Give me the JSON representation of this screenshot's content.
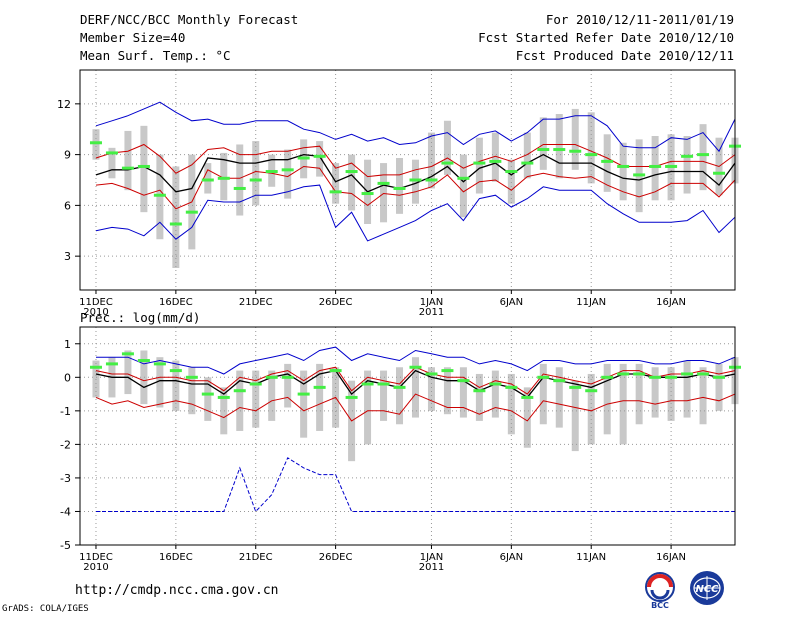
{
  "header": {
    "title": "DERF/NCC/BCC Monthly Forecast",
    "member_size": "Member Size=40",
    "variable": "Mean Surf. Temp.: °C",
    "forecast_range": "For 2010/12/11-2011/01/19",
    "start_date": "Fcst Started Refer Date 2010/12/10",
    "produced_date": "Fcst Produced Date 2010/12/11"
  },
  "footer": {
    "url": "http://cmdp.ncc.cma.gov.cn",
    "credit": "GrADS: COLA/IGES",
    "logo_bcc": "BCC",
    "logo_ncc": "NCC"
  },
  "colors": {
    "mean": "#000000",
    "inner": "#cc0000",
    "outer": "#0000cc",
    "box": "#c8c8c8",
    "obs": "#44ee44"
  },
  "chart_data": [
    {
      "type": "line",
      "title": "Mean Surf. Temp.: °C",
      "x_labels": [
        {
          "day": 1,
          "text": "11DEC",
          "sub": "2010"
        },
        {
          "day": 6,
          "text": "16DEC",
          "sub": ""
        },
        {
          "day": 11,
          "text": "21DEC",
          "sub": ""
        },
        {
          "day": 16,
          "text": "26DEC",
          "sub": ""
        },
        {
          "day": 22,
          "text": "1JAN",
          "sub": "2011"
        },
        {
          "day": 27,
          "text": "6JAN",
          "sub": ""
        },
        {
          "day": 32,
          "text": "11JAN",
          "sub": ""
        },
        {
          "day": 37,
          "text": "16JAN",
          "sub": ""
        }
      ],
      "yticks": [
        "3",
        "6",
        "9",
        "12"
      ],
      "ylim": [
        1,
        14
      ],
      "xlim": [
        0,
        41
      ],
      "series": [
        {
          "name": "ensemble mean",
          "values": [
            7.8,
            8.1,
            8.1,
            8.3,
            7.8,
            6.8,
            7.0,
            8.8,
            8.7,
            8.5,
            8.5,
            8.7,
            8.7,
            9.0,
            8.9,
            7.4,
            7.8,
            6.8,
            7.2,
            7.0,
            7.3,
            7.7,
            8.3,
            7.4,
            8.2,
            8.5,
            7.8,
            8.5,
            9.0,
            8.5,
            8.5,
            8.5,
            8.0,
            7.6,
            7.5,
            7.8,
            8.0,
            8.0,
            8.0,
            7.2,
            8.5
          ]
        },
        {
          "name": "upper band",
          "values": [
            8.8,
            9.1,
            9.2,
            9.6,
            8.9,
            7.9,
            8.4,
            9.3,
            9.4,
            9.0,
            9.0,
            9.2,
            9.2,
            9.4,
            9.5,
            8.2,
            8.5,
            7.7,
            7.8,
            7.8,
            8.1,
            8.3,
            8.8,
            8.2,
            8.6,
            8.9,
            8.6,
            9.0,
            9.6,
            9.6,
            9.6,
            9.2,
            8.8,
            8.3,
            8.3,
            8.3,
            8.6,
            8.6,
            8.6,
            8.3,
            9.0
          ]
        },
        {
          "name": "lower band",
          "values": [
            7.2,
            7.3,
            7.0,
            6.6,
            6.9,
            5.8,
            6.2,
            8.1,
            7.6,
            7.6,
            8.0,
            7.9,
            7.7,
            8.3,
            8.2,
            6.8,
            6.7,
            6.0,
            6.7,
            6.6,
            6.8,
            7.1,
            7.8,
            6.8,
            7.4,
            7.5,
            6.9,
            7.7,
            7.9,
            7.7,
            7.6,
            7.7,
            7.2,
            6.8,
            6.5,
            6.8,
            7.3,
            7.3,
            7.3,
            6.5,
            7.5
          ]
        },
        {
          "name": "max",
          "values": [
            10.7,
            11.0,
            11.3,
            11.7,
            12.1,
            11.5,
            11.0,
            11.1,
            10.8,
            10.8,
            11.0,
            11.0,
            11.0,
            10.5,
            10.3,
            9.9,
            10.2,
            9.8,
            10.0,
            9.6,
            9.7,
            10.1,
            10.3,
            9.6,
            10.2,
            10.4,
            9.8,
            10.3,
            11.1,
            11.1,
            11.3,
            11.3,
            10.7,
            9.5,
            9.4,
            9.4,
            10.0,
            9.9,
            10.3,
            9.2,
            11.1
          ]
        },
        {
          "name": "min",
          "values": [
            4.5,
            4.7,
            4.6,
            4.2,
            5.0,
            4.0,
            4.7,
            6.3,
            6.2,
            6.2,
            6.6,
            6.6,
            6.8,
            7.1,
            7.2,
            4.7,
            5.6,
            3.9,
            4.3,
            4.7,
            5.1,
            5.7,
            6.1,
            5.1,
            6.4,
            6.6,
            5.9,
            6.4,
            7.1,
            6.9,
            6.9,
            6.9,
            6.1,
            5.5,
            5.0,
            5.0,
            5.0,
            5.1,
            5.7,
            4.4,
            5.3
          ]
        }
      ],
      "boxes": [
        {
          "low": 8.7,
          "high": 10.5
        },
        {
          "low": 7.6,
          "high": 9.4
        },
        {
          "low": 6.9,
          "high": 10.4
        },
        {
          "low": 5.6,
          "high": 10.7
        },
        {
          "low": 4.0,
          "high": 9.0
        },
        {
          "low": 2.3,
          "high": 8.3
        },
        {
          "low": 3.4,
          "high": 9.0
        },
        {
          "low": 6.7,
          "high": 8.5
        },
        {
          "low": 6.3,
          "high": 9.1
        },
        {
          "low": 5.4,
          "high": 9.6
        },
        {
          "low": 6.0,
          "high": 9.8
        },
        {
          "low": 7.1,
          "high": 9.0
        },
        {
          "low": 6.4,
          "high": 9.3
        },
        {
          "low": 7.6,
          "high": 9.9
        },
        {
          "low": 7.7,
          "high": 9.8
        },
        {
          "low": 6.1,
          "high": 8.5
        },
        {
          "low": 5.7,
          "high": 9.0
        },
        {
          "low": 4.9,
          "high": 8.7
        },
        {
          "low": 5.0,
          "high": 8.5
        },
        {
          "low": 5.5,
          "high": 8.8
        },
        {
          "low": 6.1,
          "high": 8.7
        },
        {
          "low": 7.0,
          "high": 10.3
        },
        {
          "low": 7.8,
          "high": 11.0
        },
        {
          "low": 5.3,
          "high": 9.0
        },
        {
          "low": 6.7,
          "high": 10.0
        },
        {
          "low": 7.4,
          "high": 10.3
        },
        {
          "low": 6.1,
          "high": 8.7
        },
        {
          "low": 7.6,
          "high": 10.3
        },
        {
          "low": 8.1,
          "high": 11.2
        },
        {
          "low": 7.6,
          "high": 11.4
        },
        {
          "low": 8.1,
          "high": 11.7
        },
        {
          "low": 7.3,
          "high": 11.5
        },
        {
          "low": 6.8,
          "high": 10.2
        },
        {
          "low": 6.3,
          "high": 9.7
        },
        {
          "low": 5.6,
          "high": 9.9
        },
        {
          "low": 6.3,
          "high": 10.1
        },
        {
          "low": 6.3,
          "high": 10.2
        },
        {
          "low": 6.7,
          "high": 10.1
        },
        {
          "low": 6.9,
          "high": 10.8
        },
        {
          "low": 6.6,
          "high": 10.0
        },
        {
          "low": 7.3,
          "high": 10.0
        }
      ],
      "observed": [
        9.7,
        9.1,
        8.2,
        8.3,
        6.6,
        4.9,
        5.6,
        7.5,
        7.6,
        7.0,
        7.5,
        8.0,
        8.1,
        8.8,
        8.9,
        6.8,
        8.0,
        6.7,
        7.3,
        7.0,
        7.5,
        7.5,
        8.5,
        7.6,
        8.5,
        8.6,
        8.0,
        8.5,
        9.3,
        9.3,
        9.2,
        9.0,
        8.6,
        8.3,
        7.8,
        8.3,
        8.3,
        8.9,
        9.0,
        7.9,
        9.5
      ]
    },
    {
      "type": "line",
      "title": "Prec.: log(mm/d)",
      "x_labels": [
        {
          "day": 1,
          "text": "11DEC",
          "sub": "2010"
        },
        {
          "day": 6,
          "text": "16DEC",
          "sub": ""
        },
        {
          "day": 11,
          "text": "21DEC",
          "sub": ""
        },
        {
          "day": 16,
          "text": "26DEC",
          "sub": ""
        },
        {
          "day": 22,
          "text": "1JAN",
          "sub": "2011"
        },
        {
          "day": 27,
          "text": "6JAN",
          "sub": ""
        },
        {
          "day": 32,
          "text": "11JAN",
          "sub": ""
        },
        {
          "day": 37,
          "text": "16JAN",
          "sub": ""
        }
      ],
      "yticks": [
        "-5",
        "-4",
        "-3",
        "-2",
        "-1",
        "0",
        "1"
      ],
      "ylim": [
        -5,
        1.5
      ],
      "xlim": [
        0,
        41
      ],
      "series": [
        {
          "name": "ensemble mean",
          "values": [
            0.1,
            0.0,
            0.0,
            -0.3,
            -0.1,
            -0.1,
            -0.2,
            -0.2,
            -0.5,
            -0.1,
            -0.2,
            0.0,
            0.1,
            -0.2,
            0.1,
            0.2,
            -0.5,
            -0.1,
            -0.2,
            -0.3,
            0.2,
            0.0,
            -0.1,
            -0.1,
            -0.4,
            -0.2,
            -0.3,
            -0.6,
            0.0,
            -0.1,
            -0.2,
            -0.3,
            -0.1,
            0.1,
            0.1,
            0.0,
            0.0,
            0.0,
            0.1,
            0.0,
            0.1
          ]
        },
        {
          "name": "upper band",
          "values": [
            0.2,
            0.1,
            0.1,
            -0.1,
            0.0,
            0.0,
            -0.1,
            -0.1,
            -0.4,
            0.0,
            -0.1,
            0.1,
            0.2,
            -0.1,
            0.2,
            0.3,
            -0.4,
            0.0,
            -0.1,
            -0.2,
            0.3,
            0.1,
            0.0,
            0.0,
            -0.3,
            -0.1,
            -0.2,
            -0.5,
            0.1,
            0.0,
            -0.1,
            -0.2,
            0.0,
            0.2,
            0.2,
            0.0,
            0.1,
            0.1,
            0.2,
            0.1,
            0.2
          ]
        },
        {
          "name": "lower band",
          "values": [
            -0.6,
            -0.8,
            -0.7,
            -0.9,
            -0.8,
            -0.7,
            -0.8,
            -1.0,
            -1.2,
            -0.9,
            -1.0,
            -0.7,
            -0.6,
            -1.0,
            -0.8,
            -0.6,
            -1.3,
            -1.0,
            -1.0,
            -1.1,
            -0.5,
            -0.7,
            -0.9,
            -0.9,
            -1.1,
            -0.9,
            -1.0,
            -1.3,
            -0.7,
            -0.8,
            -0.9,
            -1.0,
            -0.8,
            -0.7,
            -0.7,
            -0.8,
            -0.7,
            -0.7,
            -0.6,
            -0.7,
            -0.5
          ]
        },
        {
          "name": "max",
          "values": [
            0.6,
            0.6,
            0.6,
            0.4,
            0.5,
            0.4,
            0.3,
            0.3,
            0.1,
            0.4,
            0.5,
            0.6,
            0.7,
            0.5,
            0.8,
            0.9,
            0.5,
            0.7,
            0.6,
            0.5,
            0.8,
            0.7,
            0.6,
            0.6,
            0.4,
            0.5,
            0.4,
            0.2,
            0.5,
            0.5,
            0.4,
            0.4,
            0.5,
            0.5,
            0.5,
            0.4,
            0.4,
            0.5,
            0.5,
            0.4,
            0.6
          ]
        },
        {
          "name": "min",
          "values": [
            -4.0,
            -4.0,
            -4.0,
            -4.0,
            -4.0,
            -4.0,
            -4.0,
            -4.0,
            -4.0,
            -2.7,
            -4.0,
            -3.5,
            -2.4,
            -2.7,
            -2.9,
            -2.9,
            -4.0,
            -4.0,
            -4.0,
            -4.0,
            -4.0,
            -4.0,
            -4.0,
            -4.0,
            -4.0,
            -4.0,
            -4.0,
            -4.0,
            -4.0,
            -4.0,
            -4.0,
            -4.0,
            -4.0,
            -4.0,
            -4.0,
            -4.0,
            -4.0,
            -4.0,
            -4.0,
            -4.0,
            -4.0
          ]
        }
      ],
      "boxes": [
        {
          "low": -0.6,
          "high": 0.5
        },
        {
          "low": -0.6,
          "high": 0.6
        },
        {
          "low": -0.5,
          "high": 0.8
        },
        {
          "low": -0.8,
          "high": 0.8
        },
        {
          "low": -0.9,
          "high": 0.6
        },
        {
          "low": -1.0,
          "high": 0.5
        },
        {
          "low": -1.1,
          "high": 0.3
        },
        {
          "low": -1.3,
          "high": 0.0
        },
        {
          "low": -1.7,
          "high": -0.3
        },
        {
          "low": -1.6,
          "high": 0.2
        },
        {
          "low": -1.5,
          "high": 0.2
        },
        {
          "low": -1.3,
          "high": 0.2
        },
        {
          "low": -0.9,
          "high": 0.4
        },
        {
          "low": -1.8,
          "high": 0.2
        },
        {
          "low": -1.6,
          "high": 0.4
        },
        {
          "low": -1.5,
          "high": 0.3
        },
        {
          "low": -2.5,
          "high": -0.1
        },
        {
          "low": -2.0,
          "high": 0.2
        },
        {
          "low": -1.3,
          "high": 0.2
        },
        {
          "low": -1.4,
          "high": 0.3
        },
        {
          "low": -1.2,
          "high": 0.6
        },
        {
          "low": -1.0,
          "high": 0.3
        },
        {
          "low": -1.1,
          "high": 0.3
        },
        {
          "low": -1.2,
          "high": 0.3
        },
        {
          "low": -1.3,
          "high": 0.1
        },
        {
          "low": -1.2,
          "high": 0.2
        },
        {
          "low": -1.7,
          "high": 0.1
        },
        {
          "low": -2.1,
          "high": -0.3
        },
        {
          "low": -1.4,
          "high": 0.4
        },
        {
          "low": -1.5,
          "high": 0.3
        },
        {
          "low": -2.2,
          "high": -0.1
        },
        {
          "low": -2.0,
          "high": 0.1
        },
        {
          "low": -1.7,
          "high": 0.4
        },
        {
          "low": -2.0,
          "high": 0.4
        },
        {
          "low": -1.4,
          "high": 0.4
        },
        {
          "low": -1.2,
          "high": 0.3
        },
        {
          "low": -1.3,
          "high": 0.3
        },
        {
          "low": -1.2,
          "high": 0.5
        },
        {
          "low": -1.4,
          "high": 0.3
        },
        {
          "low": -1.0,
          "high": 0.4
        },
        {
          "low": -0.8,
          "high": 0.6
        }
      ],
      "observed": [
        0.3,
        0.4,
        0.7,
        0.5,
        0.4,
        0.2,
        0.0,
        -0.5,
        -0.6,
        -0.4,
        -0.2,
        0.0,
        0.0,
        -0.5,
        -0.3,
        0.2,
        -0.6,
        -0.2,
        -0.2,
        -0.3,
        0.3,
        0.1,
        0.2,
        -0.1,
        -0.4,
        -0.2,
        -0.3,
        -0.6,
        0.0,
        -0.1,
        -0.3,
        -0.4,
        0.0,
        0.1,
        0.1,
        0.0,
        0.0,
        0.1,
        0.1,
        0.0,
        0.3
      ]
    }
  ]
}
